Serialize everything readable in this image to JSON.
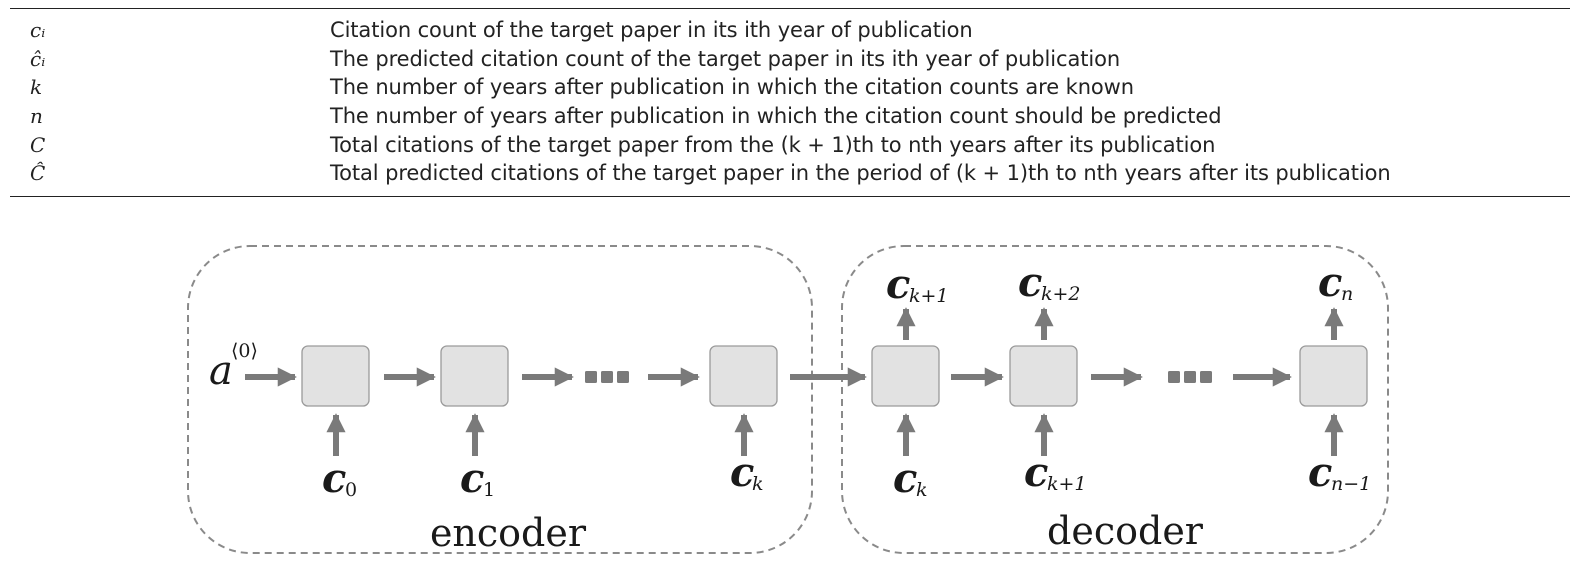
{
  "notation": {
    "rows": [
      {
        "symbol": "cᵢ",
        "description": "Citation count of the target paper in its ith year of publication"
      },
      {
        "symbol": "ĉᵢ",
        "description": "The predicted citation count of the target paper in its ith year of publication"
      },
      {
        "symbol": "k",
        "description": "The number of years after publication in which the citation counts are known"
      },
      {
        "symbol": "n",
        "description": "The number of years after publication in which the citation count should be predicted"
      },
      {
        "symbol": "C",
        "description": "Total citations of the target paper from the (k + 1)th to nth years after its publication"
      },
      {
        "symbol": "Ĉ",
        "description": "Total predicted citations of the target paper in the period of (k + 1)th to nth years after its publication"
      }
    ]
  },
  "diagram": {
    "encoder_label": "encoder",
    "decoder_label": "decoder",
    "initial_state": {
      "symbol": "a",
      "superscript": "⟨0⟩"
    },
    "encoder_inputs": [
      {
        "symbol": "c",
        "subscript": "0"
      },
      {
        "symbol": "c",
        "subscript": "1"
      },
      {
        "symbol": "c",
        "subscript": "k"
      }
    ],
    "decoder_inputs": [
      {
        "symbol": "c",
        "subscript": "k"
      },
      {
        "symbol": "c",
        "subscript": "k+1"
      },
      {
        "symbol": "c",
        "subscript": "n−1"
      }
    ],
    "decoder_outputs": [
      {
        "symbol": "c",
        "subscript": "k+1"
      },
      {
        "symbol": "c",
        "subscript": "k+2"
      },
      {
        "symbol": "c",
        "subscript": "n"
      }
    ],
    "colors": {
      "cell_fill": "#e2e2e2",
      "arrow": "#7a7a7a",
      "panel_border": "#8a8a8a"
    }
  }
}
